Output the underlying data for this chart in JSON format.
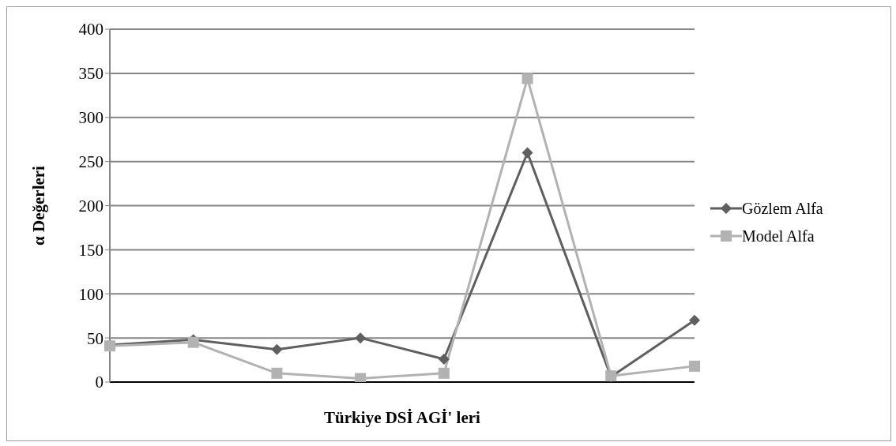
{
  "chart_data": {
    "type": "line",
    "xlabel": "Türkiye DSİ AGİ' leri",
    "ylabel": "α Değerleri",
    "categories": [
      null,
      null,
      null,
      null,
      null,
      null,
      null,
      null
    ],
    "series": [
      {
        "name": "Gözlem Alfa",
        "color": "#5f5f5f",
        "marker": "diamond",
        "values": [
          42,
          48,
          37,
          50,
          26,
          260,
          6,
          70
        ]
      },
      {
        "name": "Model Alfa",
        "color": "#b2b2b2",
        "marker": "square",
        "values": [
          41,
          45,
          10,
          4,
          10,
          344,
          7,
          18
        ]
      }
    ],
    "ylim": [
      0,
      400
    ],
    "yticks": [
      0,
      50,
      100,
      150,
      200,
      250,
      300,
      350,
      400
    ],
    "grid": "y",
    "legend": "right",
    "tick_labels": "y"
  }
}
